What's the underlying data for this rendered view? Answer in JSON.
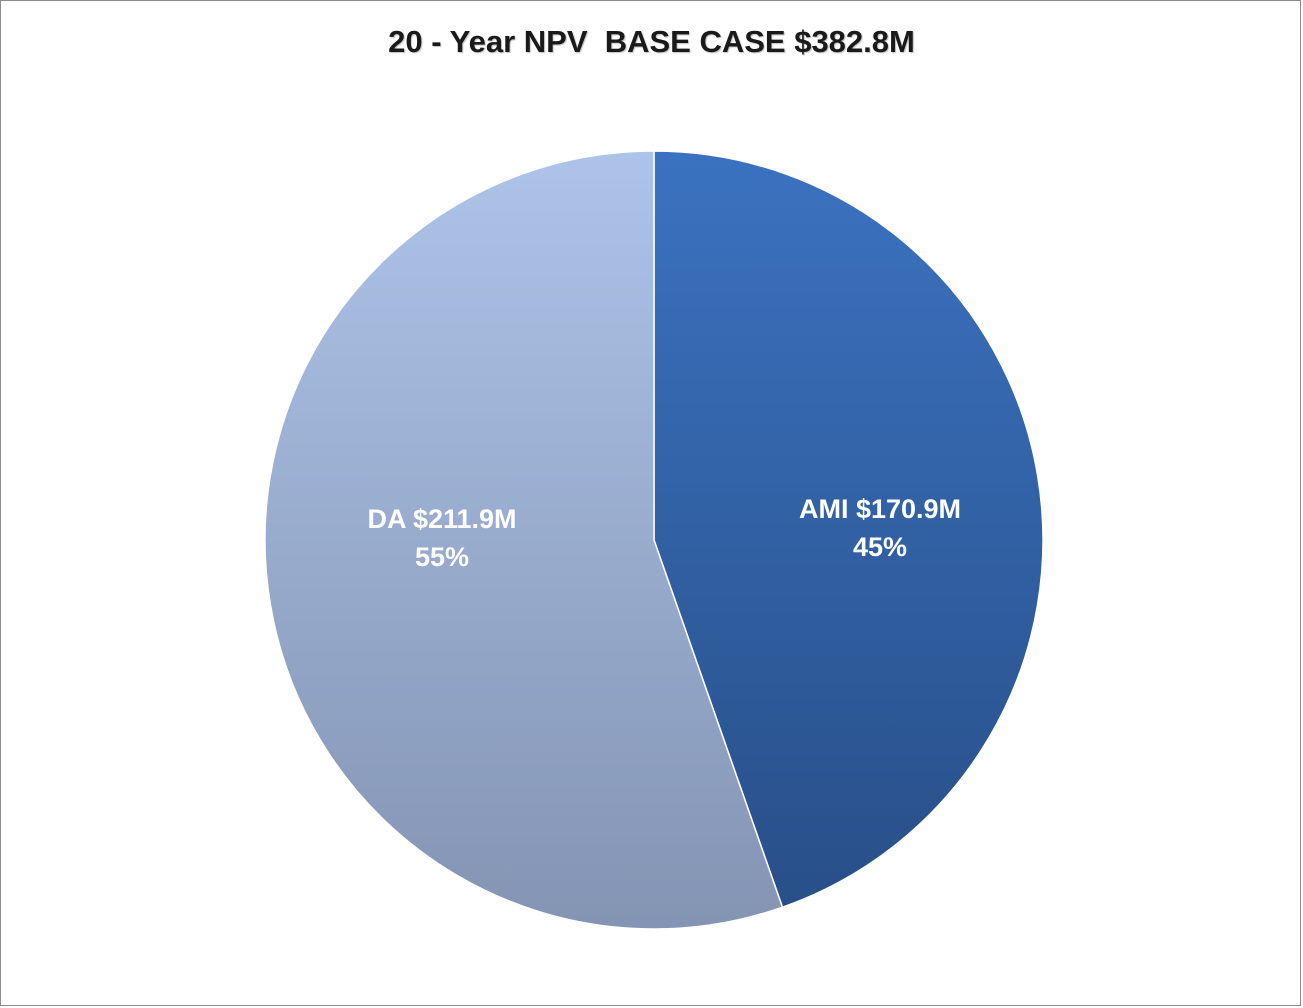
{
  "chart_data": {
    "type": "pie",
    "title": "20 - Year NPV  BASE CASE $382.8M",
    "slices": [
      {
        "label": "AMI  $170.9M",
        "percent_label": "45%",
        "value": 170.9,
        "color": "#3a6db5"
      },
      {
        "label": "DA  $211.9M",
        "percent_label": "55%",
        "value": 211.9,
        "color": "#9fb5dc"
      }
    ],
    "start_angle_deg": 0,
    "direction": "clockwise",
    "legend": "none"
  }
}
